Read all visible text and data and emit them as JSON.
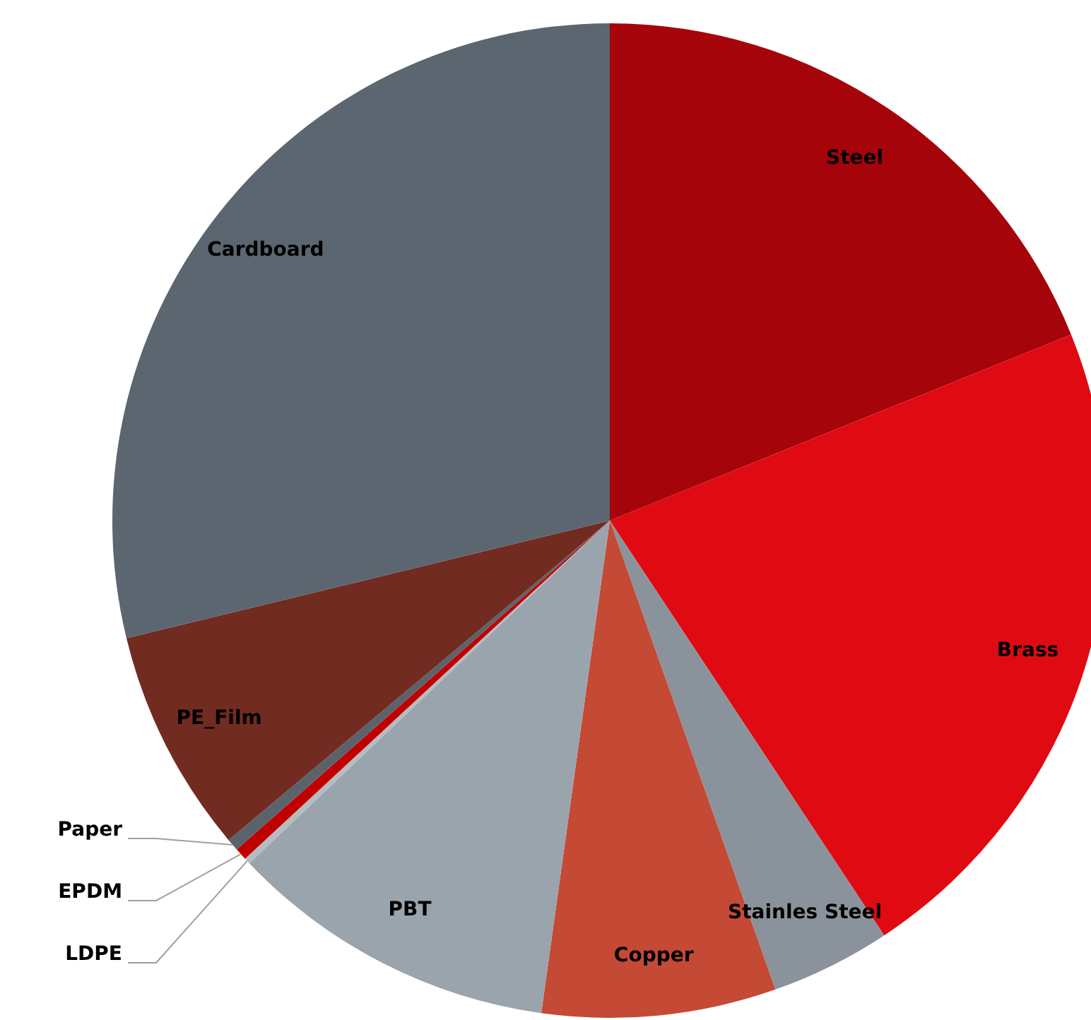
{
  "chart_data": {
    "type": "pie",
    "categories": [
      "Steel",
      "Brass",
      "Stainles Steel",
      "Copper",
      "PBT",
      "LDPE",
      "EPDM",
      "Paper",
      "PE_Film",
      "Cardboard"
    ],
    "values": [
      18.9,
      21.8,
      3.9,
      7.6,
      10.7,
      0.2,
      0.4,
      0.4,
      7.3,
      28.8
    ],
    "colors": [
      "#a6040b",
      "#e00a12",
      "#8a939b",
      "#c44a35",
      "#9aa4ac",
      "#b4bcc2",
      "#c00000",
      "#5a636b",
      "#722b20",
      "#5b6670"
    ]
  }
}
